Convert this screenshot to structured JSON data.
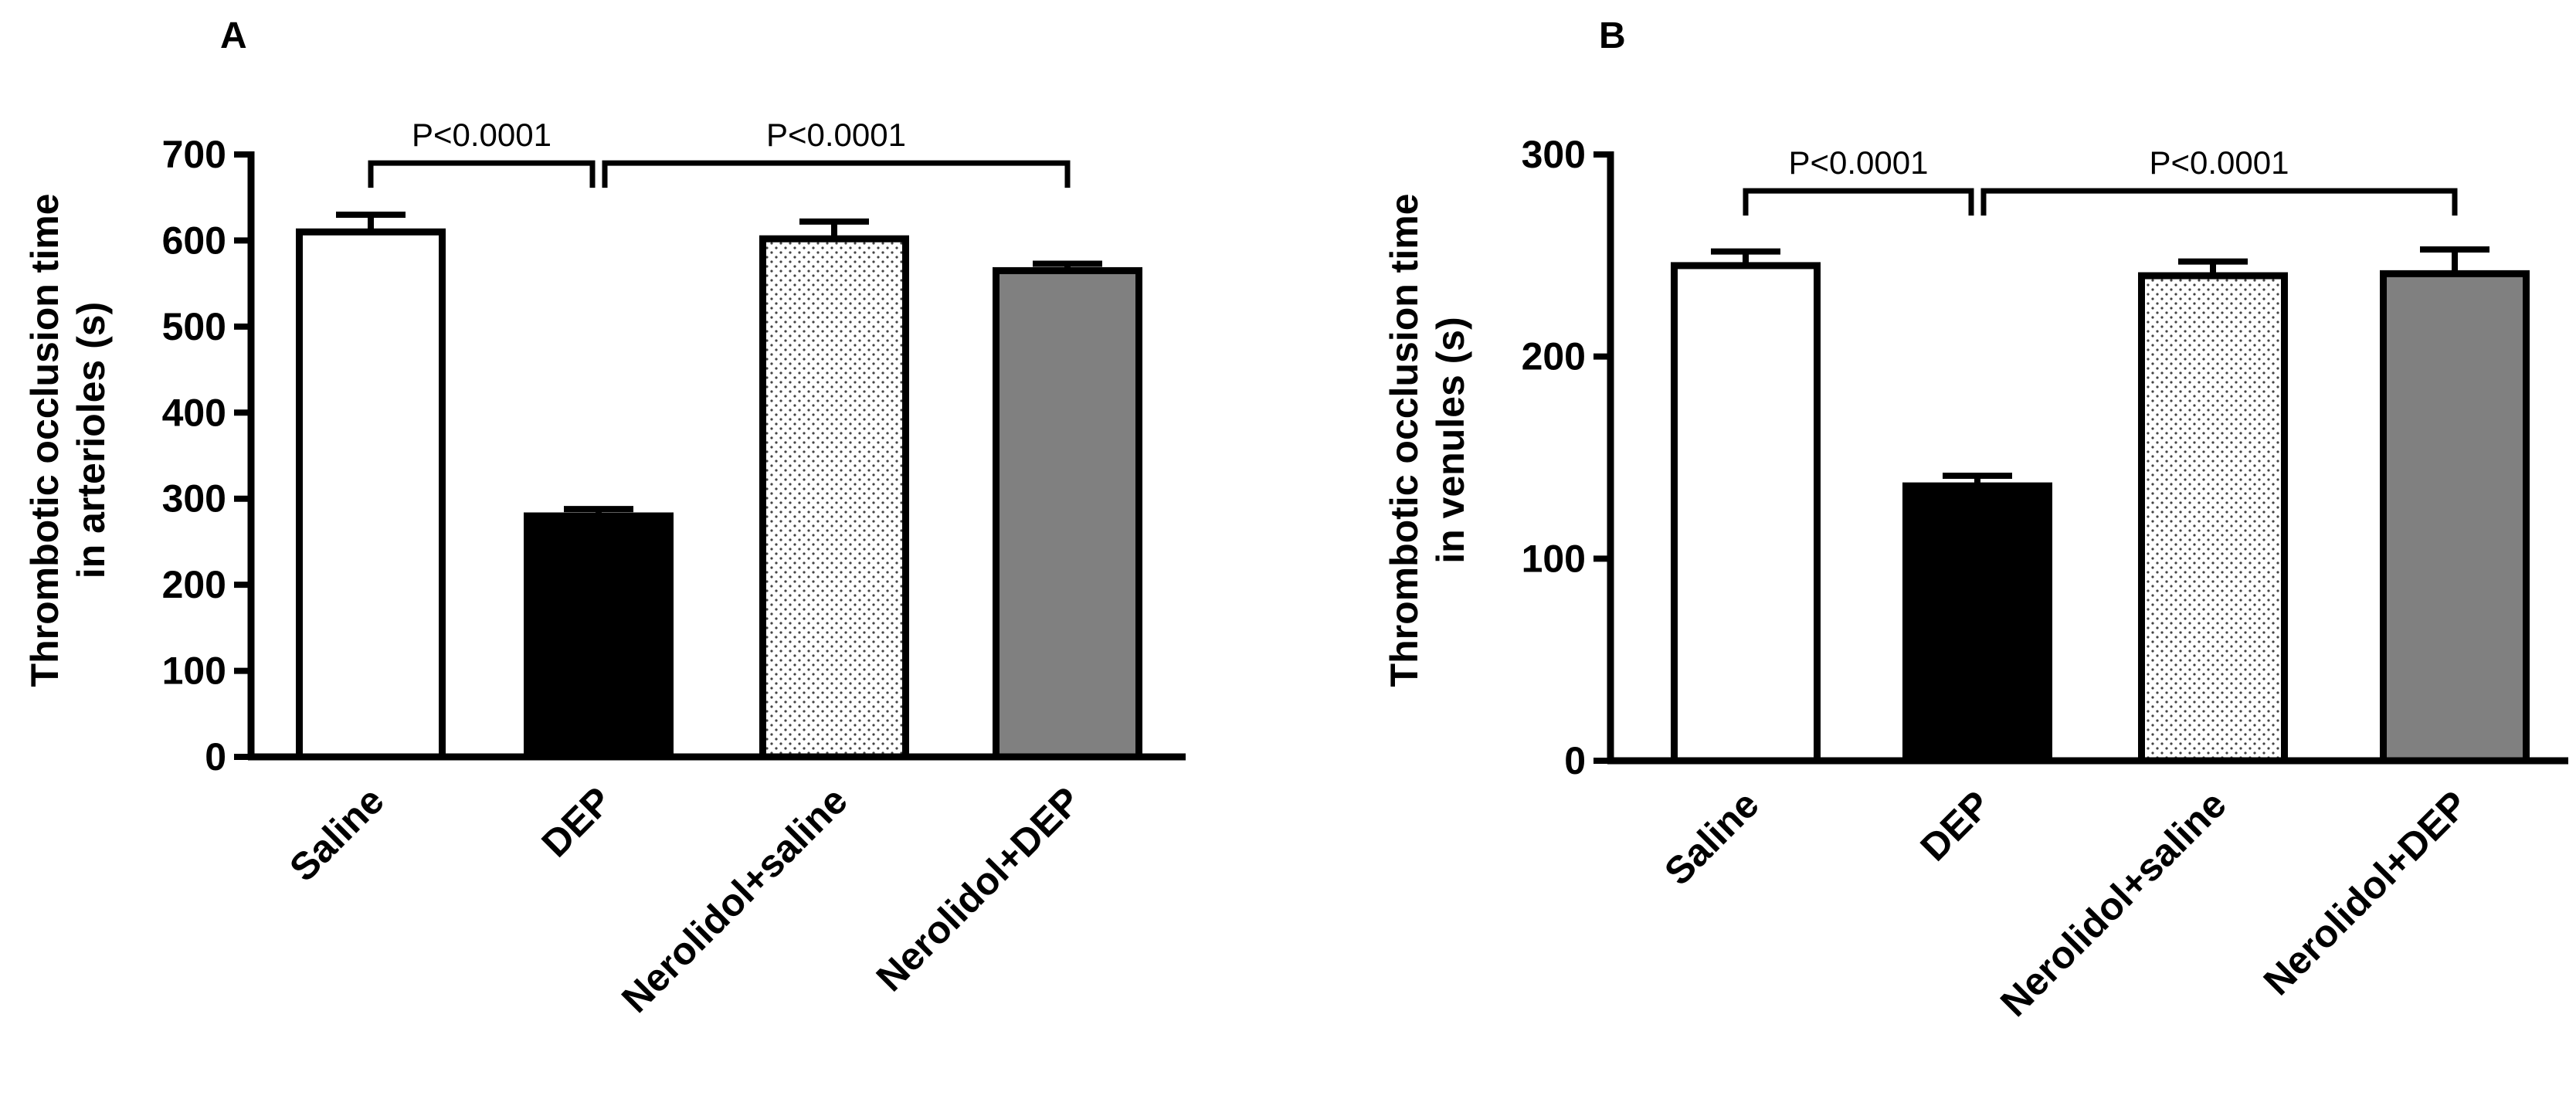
{
  "chart_data": [
    {
      "type": "bar",
      "panel": "A",
      "categories": [
        "Saline",
        "DEP",
        "Nerolidol+saline",
        "Nerolidol+DEP"
      ],
      "values": [
        610,
        280,
        602,
        565
      ],
      "errors": [
        20,
        8,
        20,
        8
      ],
      "fills": [
        "white",
        "black",
        "dotted",
        "gray"
      ],
      "ylabel_line1": "Thrombotic occlusion time",
      "ylabel_line2": "in arterioles (s)",
      "xlabel": "",
      "ylim": [
        0,
        700
      ],
      "yticks": [
        0,
        100,
        200,
        300,
        400,
        500,
        600,
        700
      ],
      "comparisons": [
        {
          "from": 0,
          "to": 1,
          "text": "P<0.0001"
        },
        {
          "from": 1,
          "to": 3,
          "text": "P<0.0001"
        }
      ],
      "bracket_level": 690
    },
    {
      "type": "bar",
      "panel": "B",
      "categories": [
        "Saline",
        "DEP",
        "Nerolidol+saline",
        "Nerolidol+DEP"
      ],
      "values": [
        245,
        136,
        240,
        241
      ],
      "errors": [
        7,
        5,
        7,
        12
      ],
      "fills": [
        "white",
        "black",
        "dotted",
        "gray"
      ],
      "ylabel_line1": "Thrombotic occlusion time",
      "ylabel_line2": "in venules (s)",
      "xlabel": "",
      "ylim": [
        0,
        300
      ],
      "yticks": [
        0,
        100,
        200,
        300
      ],
      "comparisons": [
        {
          "from": 0,
          "to": 1,
          "text": "P<0.0001"
        },
        {
          "from": 1,
          "to": 3,
          "text": "P<0.0001"
        }
      ],
      "bracket_level": 282
    }
  ],
  "colors": {
    "axis": "#000000",
    "black_bar": "#000000",
    "gray_bar": "#808080",
    "white_bar": "#ffffff",
    "dot": "#444444"
  }
}
